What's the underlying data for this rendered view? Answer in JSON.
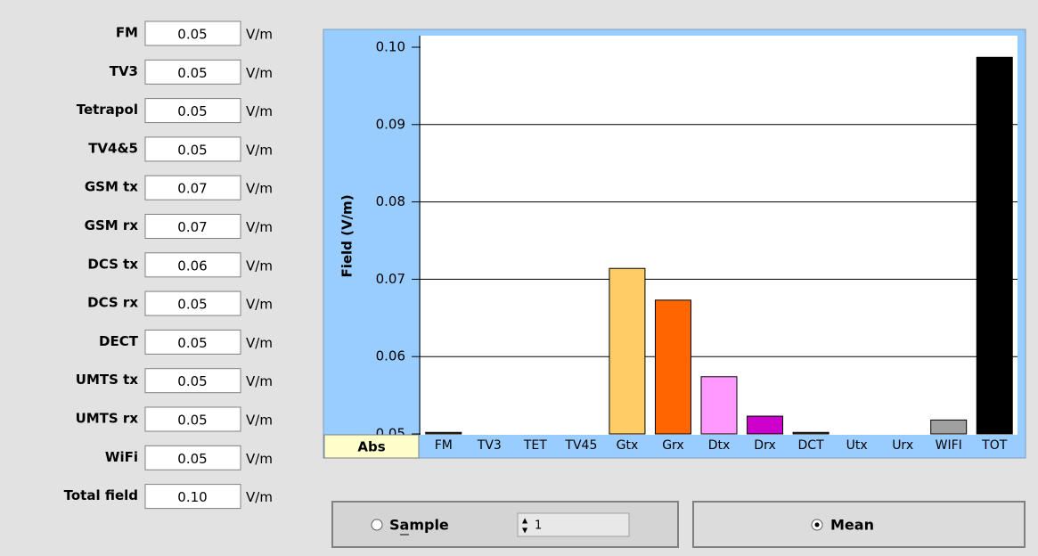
{
  "fields": [
    {
      "label": "FM",
      "value": "0.05",
      "unit": "V/m"
    },
    {
      "label": "TV3",
      "value": "0.05",
      "unit": "V/m"
    },
    {
      "label": "Tetrapol",
      "value": "0.05",
      "unit": "V/m"
    },
    {
      "label": "TV4&5",
      "value": "0.05",
      "unit": "V/m"
    },
    {
      "label": "GSM tx",
      "value": "0.07",
      "unit": "V/m"
    },
    {
      "label": "GSM rx",
      "value": "0.07",
      "unit": "V/m"
    },
    {
      "label": "DCS tx",
      "value": "0.06",
      "unit": "V/m"
    },
    {
      "label": "DCS rx",
      "value": "0.05",
      "unit": "V/m"
    },
    {
      "label": "DECT",
      "value": "0.05",
      "unit": "V/m"
    },
    {
      "label": "UMTS tx",
      "value": "0.05",
      "unit": "V/m"
    },
    {
      "label": "UMTS rx",
      "value": "0.05",
      "unit": "V/m"
    },
    {
      "label": "WiFi",
      "value": "0.05",
      "unit": "V/m"
    },
    {
      "label": "Total field",
      "value": "0.10",
      "unit": "V/m"
    }
  ],
  "chart_data": {
    "type": "bar",
    "y_label": "Field (V/m)",
    "categories": [
      "FM",
      "TV3",
      "TET",
      "TV45",
      "Gtx",
      "Grx",
      "Dtx",
      "Drx",
      "DCT",
      "Utx",
      "Urx",
      "WIFI",
      "TOT"
    ],
    "values": [
      0.0502,
      0.05,
      0.05,
      0.05,
      0.0714,
      0.0673,
      0.0574,
      0.0523,
      0.0502,
      0.05,
      0.05,
      0.0518,
      0.0987
    ],
    "colors": [
      "#404040",
      "#808080",
      "#808080",
      "#808080",
      "#ffcc66",
      "#ff6600",
      "#ff99ff",
      "#cc00cc",
      "#404040",
      "#808080",
      "#808080",
      "#a0a0a0",
      "#000000"
    ],
    "ylim": [
      0.05,
      0.1
    ],
    "yticks": [
      0.05,
      0.06,
      0.07,
      0.08,
      0.09,
      {
        "value": 0.1,
        "label": "0.10"
      }
    ],
    "grid": true
  },
  "buttons": {
    "abs": "Abs"
  },
  "controls": {
    "sample": "Sample",
    "spinner": "1",
    "mean": "Mean"
  }
}
